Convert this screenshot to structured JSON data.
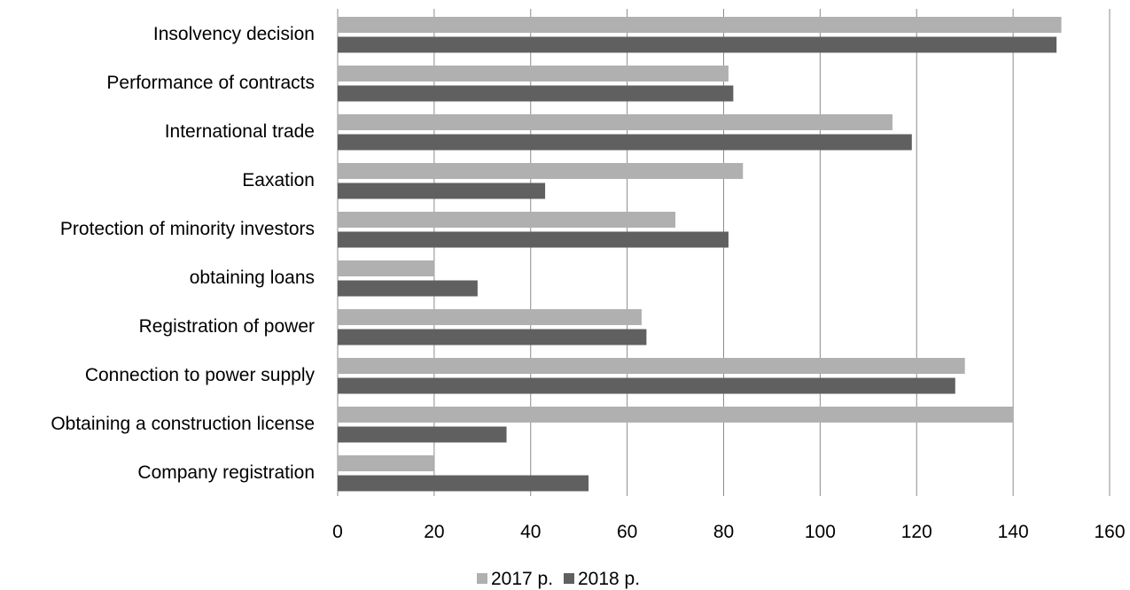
{
  "chart_data": {
    "type": "bar",
    "orientation": "horizontal",
    "categories": [
      "Insolvency decision",
      "Performance of contracts",
      "International trade",
      "Eaxation",
      "Protection of minority investors",
      "obtaining loans",
      "Registration of power",
      "Connection to power supply",
      "Obtaining a construction license",
      "Company registration"
    ],
    "series": [
      {
        "name": "2017 р.",
        "color": "#b0b0b0",
        "values": [
          150,
          81,
          115,
          84,
          70,
          20,
          63,
          130,
          140,
          20
        ]
      },
      {
        "name": "2018 р.",
        "color": "#606060",
        "values": [
          149,
          82,
          119,
          43,
          81,
          29,
          64,
          128,
          35,
          52
        ]
      }
    ],
    "xlim": [
      0,
      160
    ],
    "xticks": [
      "0",
      "20",
      "40",
      "60",
      "80",
      "100",
      "120",
      "140",
      "160"
    ],
    "grid": "vertical",
    "legend_position": "bottom-center",
    "title": "",
    "xlabel": "",
    "ylabel": ""
  }
}
